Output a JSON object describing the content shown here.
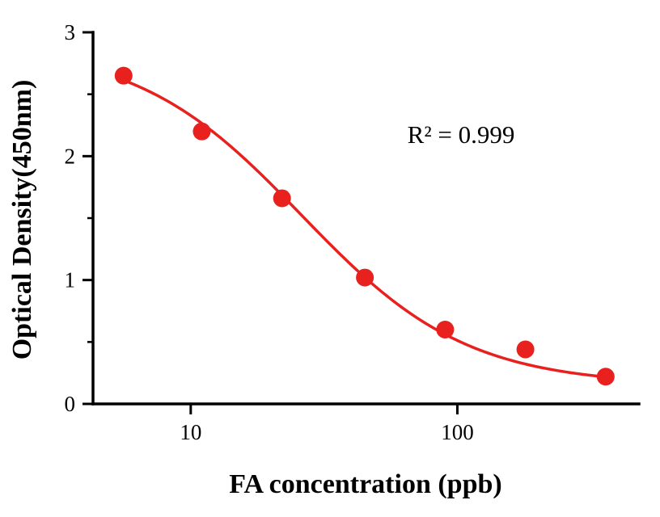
{
  "chart_data": {
    "type": "scatter",
    "title": "",
    "xlabel": "FA concentration (ppb)",
    "ylabel": "Optical Density(450nm)",
    "annotation": "R² = 0.999",
    "x_scale": "log",
    "x_range": [
      4.3,
      480
    ],
    "x_ticks": [
      10,
      100
    ],
    "x_tick_labels": [
      "10",
      "100"
    ],
    "y_range": [
      0,
      3
    ],
    "y_ticks": [
      0,
      1,
      2,
      3
    ],
    "y_tick_labels": [
      "0",
      "1",
      "2",
      "3"
    ],
    "y_minor_ticks": [
      0.5,
      1.5,
      2.5
    ],
    "grid": false,
    "legend": "none",
    "points": [
      {
        "x": 5.6,
        "y": 2.65
      },
      {
        "x": 11,
        "y": 2.2
      },
      {
        "x": 22,
        "y": 1.66
      },
      {
        "x": 45,
        "y": 1.02
      },
      {
        "x": 90,
        "y": 0.6
      },
      {
        "x": 180,
        "y": 0.44
      },
      {
        "x": 360,
        "y": 0.22
      }
    ],
    "fit": {
      "type": "4PL",
      "top": 2.9,
      "bottom": 0.15,
      "ec50": 26,
      "hill": 1.4,
      "x_start": 5.6,
      "x_end": 365
    },
    "marker_color": "#e8201e",
    "curve_color": "#e8201e",
    "axis_color": "#000000"
  }
}
